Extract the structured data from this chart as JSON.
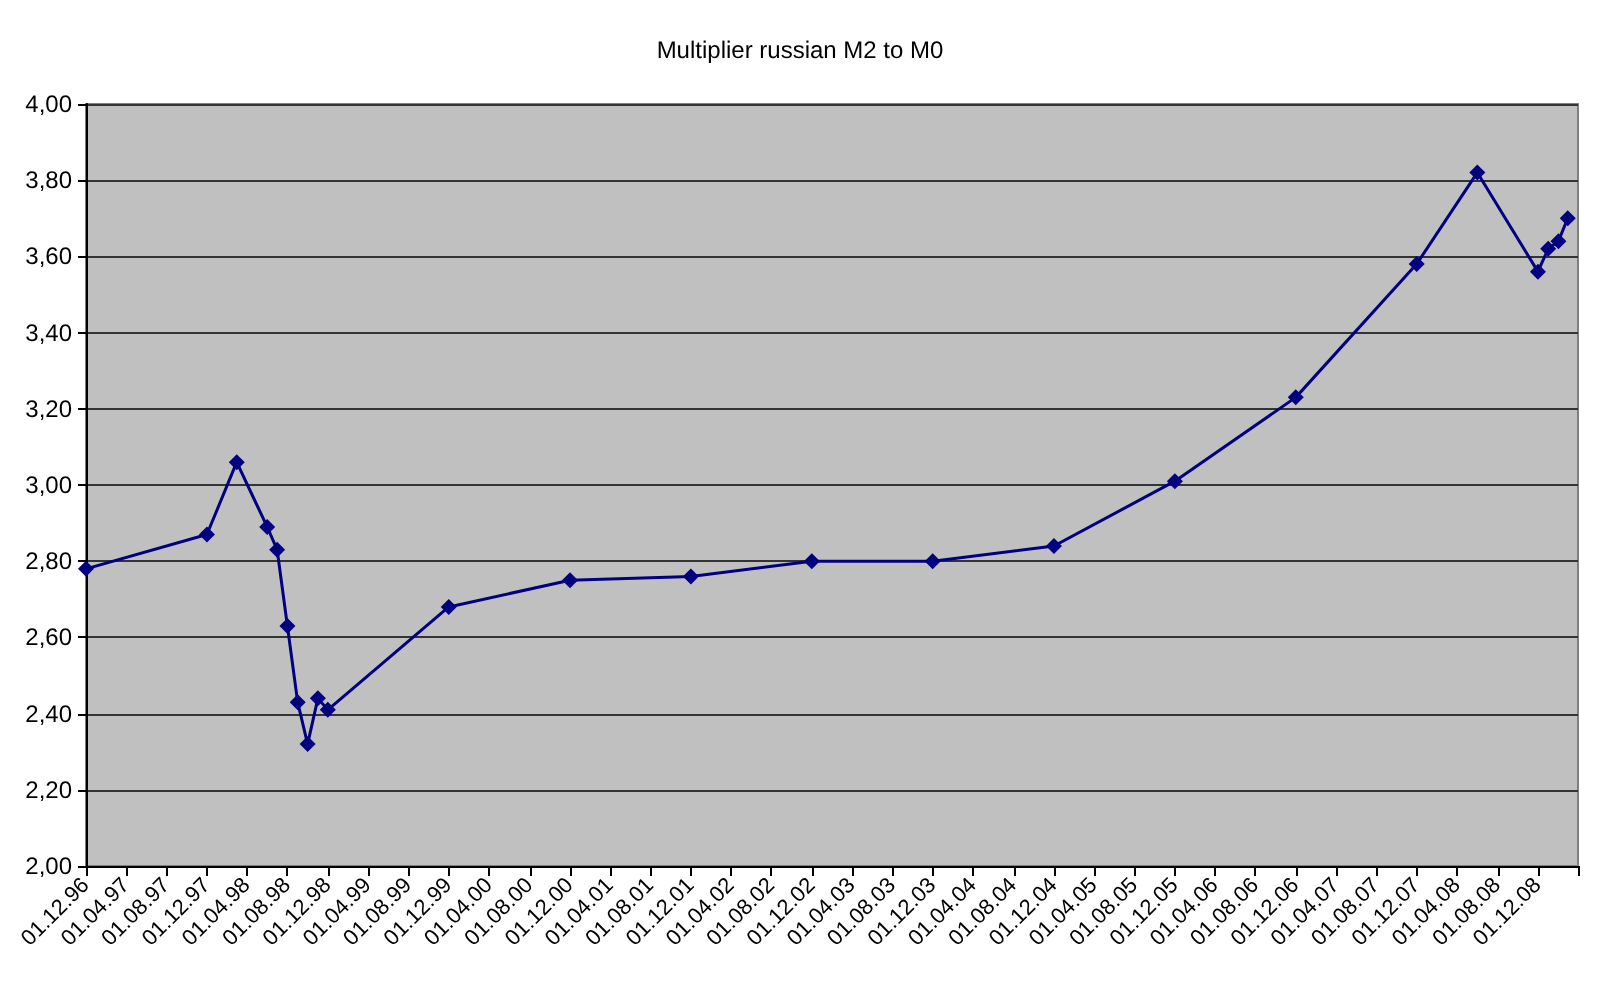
{
  "chart_data": {
    "type": "line",
    "title": "Multiplier russian M2 to M0",
    "x": [
      "1996-12-01",
      "1997-12-01",
      "1998-03-01",
      "1998-06-01",
      "1998-07-01",
      "1998-08-01",
      "1998-09-01",
      "1998-10-01",
      "1998-11-01",
      "1998-12-01",
      "1999-12-01",
      "2000-12-01",
      "2001-12-01",
      "2002-12-01",
      "2003-12-01",
      "2004-12-01",
      "2005-12-01",
      "2006-12-01",
      "2007-12-01",
      "2008-06-01",
      "2008-12-01",
      "2009-01-01",
      "2009-02-01",
      "2009-03-01"
    ],
    "series": [
      {
        "color": "#000080",
        "values": [
          2.78,
          2.87,
          3.06,
          2.89,
          2.83,
          2.63,
          2.43,
          2.32,
          2.44,
          2.41,
          2.68,
          2.75,
          2.76,
          2.8,
          2.8,
          2.84,
          3.01,
          3.23,
          3.58,
          3.82,
          3.56,
          3.62,
          3.64,
          3.7
        ]
      }
    ],
    "xlim": [
      "1996-12-01",
      "2009-04-01"
    ],
    "xticks": [
      {
        "value": "1996-12-01",
        "label": "01.12.96"
      },
      {
        "value": "1997-04-01",
        "label": "01.04.97"
      },
      {
        "value": "1997-08-01",
        "label": "01.08.97"
      },
      {
        "value": "1997-12-01",
        "label": "01.12.97"
      },
      {
        "value": "1998-04-01",
        "label": "01.04.98"
      },
      {
        "value": "1998-08-01",
        "label": "01.08.98"
      },
      {
        "value": "1998-12-01",
        "label": "01.12.98"
      },
      {
        "value": "1999-04-01",
        "label": "01.04.99"
      },
      {
        "value": "1999-08-01",
        "label": "01.08.99"
      },
      {
        "value": "1999-12-01",
        "label": "01.12.99"
      },
      {
        "value": "2000-04-01",
        "label": "01.04.00"
      },
      {
        "value": "2000-08-01",
        "label": "01.08.00"
      },
      {
        "value": "2000-12-01",
        "label": "01.12.00"
      },
      {
        "value": "2001-04-01",
        "label": "01.04.01"
      },
      {
        "value": "2001-08-01",
        "label": "01.08.01"
      },
      {
        "value": "2001-12-01",
        "label": "01.12.01"
      },
      {
        "value": "2002-04-01",
        "label": "01.04.02"
      },
      {
        "value": "2002-08-01",
        "label": "01.08.02"
      },
      {
        "value": "2002-12-01",
        "label": "01.12.02"
      },
      {
        "value": "2003-04-01",
        "label": "01.04.03"
      },
      {
        "value": "2003-08-01",
        "label": "01.08.03"
      },
      {
        "value": "2003-12-01",
        "label": "01.12.03"
      },
      {
        "value": "2004-04-01",
        "label": "01.04.04"
      },
      {
        "value": "2004-08-01",
        "label": "01.08.04"
      },
      {
        "value": "2004-12-01",
        "label": "01.12.04"
      },
      {
        "value": "2005-04-01",
        "label": "01.04.05"
      },
      {
        "value": "2005-08-01",
        "label": "01.08.05"
      },
      {
        "value": "2005-12-01",
        "label": "01.12.05"
      },
      {
        "value": "2006-04-01",
        "label": "01.04.06"
      },
      {
        "value": "2006-08-01",
        "label": "01.08.06"
      },
      {
        "value": "2006-12-01",
        "label": "01.12.06"
      },
      {
        "value": "2007-04-01",
        "label": "01.04.07"
      },
      {
        "value": "2007-08-01",
        "label": "01.08.07"
      },
      {
        "value": "2007-12-01",
        "label": "01.12.07"
      },
      {
        "value": "2008-04-01",
        "label": "01.04.08"
      },
      {
        "value": "2008-08-01",
        "label": "01.08.08"
      },
      {
        "value": "2008-12-01",
        "label": "01.12.08"
      },
      {
        "value": "2009-04-01",
        "label": null
      }
    ],
    "ylim": [
      2,
      4
    ],
    "yticks": [
      {
        "value": 2,
        "label": "2,00"
      },
      {
        "value": 2.2,
        "label": "2,20"
      },
      {
        "value": 2.4,
        "label": "2,40"
      },
      {
        "value": 2.6,
        "label": "2,60"
      },
      {
        "value": 2.8,
        "label": "2,80"
      },
      {
        "value": 3,
        "label": "3,00"
      },
      {
        "value": 3.2,
        "label": "3,20"
      },
      {
        "value": 3.4,
        "label": "3,40"
      },
      {
        "value": 3.6,
        "label": "3,60"
      },
      {
        "value": 3.8,
        "label": "3,80"
      },
      {
        "value": 4,
        "label": "4,00"
      }
    ],
    "grid": "y",
    "marker": "diamond",
    "line_style": "solid"
  }
}
